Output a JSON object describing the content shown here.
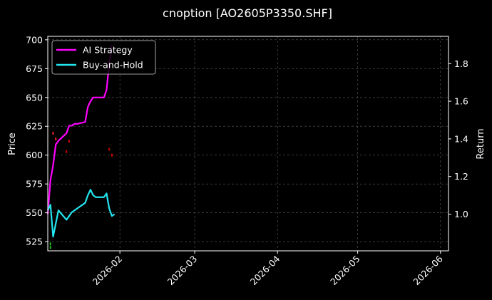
{
  "chart_data": {
    "type": "line",
    "title": "cnoption [AO2605P3350.SHF]",
    "ylabel_left": "Price",
    "ylabel_right": "Return",
    "x_axis": {
      "type": "date",
      "range": [
        "2026-01-05",
        "2026-06-04"
      ],
      "ticks": [
        "2026-02",
        "2026-03",
        "2026-04",
        "2026-05",
        "2026-06"
      ]
    },
    "y_left": {
      "range": [
        517,
        703
      ],
      "ticks": [
        525,
        550,
        575,
        600,
        625,
        650,
        675,
        700
      ]
    },
    "y_right": {
      "range": [
        0.805,
        1.945
      ],
      "ticks": [
        "1.0",
        "1.2",
        "1.4",
        "1.6",
        "1.8"
      ]
    },
    "grid": true,
    "legend": "upper-left",
    "series": [
      {
        "name": "AI Strategy",
        "axis": "right",
        "color": "#ff00ff",
        "x": [
          "2026-01-05",
          "2026-01-06",
          "2026-01-07",
          "2026-01-08",
          "2026-01-09",
          "2026-01-12",
          "2026-01-13",
          "2026-01-14",
          "2026-01-15",
          "2026-01-16",
          "2026-01-19",
          "2026-01-20",
          "2026-01-21",
          "2026-01-22",
          "2026-01-23",
          "2026-01-26",
          "2026-01-27",
          "2026-01-28",
          "2026-01-29"
        ],
        "y": [
          1.0,
          1.18,
          1.26,
          1.37,
          1.39,
          1.43,
          1.47,
          1.47,
          1.48,
          1.48,
          1.49,
          1.57,
          1.6,
          1.62,
          1.62,
          1.62,
          1.66,
          1.8,
          1.9
        ]
      },
      {
        "name": "Buy-and-Hold",
        "axis": "right",
        "color": "#22e5ee",
        "x": [
          "2026-01-05",
          "2026-01-06",
          "2026-01-07",
          "2026-01-08",
          "2026-01-09",
          "2026-01-12",
          "2026-01-13",
          "2026-01-14",
          "2026-01-15",
          "2026-01-16",
          "2026-01-19",
          "2026-01-20",
          "2026-01-21",
          "2026-01-22",
          "2026-01-23",
          "2026-01-26",
          "2026-01-27",
          "2026-01-28",
          "2026-01-29",
          "2026-01-30"
        ],
        "y": [
          1.02,
          1.05,
          0.88,
          0.95,
          1.02,
          0.97,
          0.99,
          1.01,
          1.02,
          1.03,
          1.06,
          1.1,
          1.13,
          1.1,
          1.09,
          1.09,
          1.11,
          1.03,
          0.99,
          1.0
        ]
      }
    ],
    "signals": [
      {
        "x": "2026-01-07",
        "y": 619,
        "color": "#ff2020"
      },
      {
        "x": "2026-01-08",
        "y": 614,
        "color": "#ff2020"
      },
      {
        "x": "2026-01-12",
        "y": 603,
        "color": "#cc0000"
      },
      {
        "x": "2026-01-13",
        "y": 612,
        "color": "#cc0000"
      },
      {
        "x": "2026-01-28",
        "y": 605,
        "color": "#cc0000"
      },
      {
        "x": "2026-01-29",
        "y": 600,
        "color": "#cc0000"
      },
      {
        "x": "2026-01-06",
        "y": 520,
        "color": "#1fbf1f"
      },
      {
        "x": "2026-01-06",
        "y": 523,
        "color": "#1fbf1f"
      }
    ]
  }
}
